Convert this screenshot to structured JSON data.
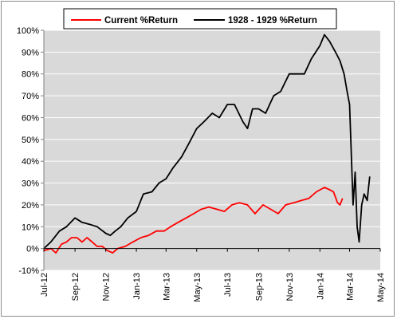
{
  "chart_data": {
    "type": "line",
    "title": "",
    "xlabel": "",
    "ylabel": "",
    "ylim": [
      -10,
      100
    ],
    "xlim": [
      "2012-07-01",
      "2014-05-01"
    ],
    "grid": "horizontal",
    "legend_position": "top",
    "colors": {
      "plot_background": "#d9d9d9",
      "gridline": "#ffffff",
      "zero_line": "#000000"
    },
    "y_ticks": [
      -10,
      0,
      10,
      20,
      30,
      40,
      50,
      60,
      70,
      80,
      90,
      100
    ],
    "y_tick_labels": [
      "-10%",
      "0%",
      "10%",
      "20%",
      "30%",
      "40%",
      "50%",
      "60%",
      "70%",
      "80%",
      "90%",
      "100%"
    ],
    "x_tick_labels": [
      "Jul-12",
      "Sep-12",
      "Nov-12",
      "Jan-13",
      "Mar-13",
      "May-13",
      "Jul-13",
      "Sep-13",
      "Nov-13",
      "Jan-14",
      "Mar-14",
      "May-14"
    ],
    "x_tick_dates": [
      "2012-07-01",
      "2012-09-01",
      "2012-11-01",
      "2013-01-01",
      "2013-03-01",
      "2013-05-01",
      "2013-07-01",
      "2013-09-01",
      "2013-11-01",
      "2014-01-01",
      "2014-03-01",
      "2014-05-01"
    ],
    "series": [
      {
        "name": "Current %Return",
        "color": "#ff0000",
        "points": [
          [
            "2012-07-01",
            -1
          ],
          [
            "2012-07-15",
            0
          ],
          [
            "2012-07-25",
            -2
          ],
          [
            "2012-08-05",
            2
          ],
          [
            "2012-08-15",
            3
          ],
          [
            "2012-08-25",
            5
          ],
          [
            "2012-09-05",
            5
          ],
          [
            "2012-09-15",
            3
          ],
          [
            "2012-09-25",
            5
          ],
          [
            "2012-10-05",
            3
          ],
          [
            "2012-10-15",
            1
          ],
          [
            "2012-10-25",
            1
          ],
          [
            "2012-11-05",
            -1
          ],
          [
            "2012-11-15",
            -2
          ],
          [
            "2012-11-25",
            0
          ],
          [
            "2012-12-10",
            1
          ],
          [
            "2012-12-25",
            3
          ],
          [
            "2013-01-10",
            5
          ],
          [
            "2013-01-25",
            6
          ],
          [
            "2013-02-10",
            8
          ],
          [
            "2013-02-25",
            8
          ],
          [
            "2013-03-10",
            10
          ],
          [
            "2013-03-25",
            12
          ],
          [
            "2013-04-10",
            14
          ],
          [
            "2013-04-25",
            16
          ],
          [
            "2013-05-10",
            18
          ],
          [
            "2013-05-25",
            19
          ],
          [
            "2013-06-10",
            18
          ],
          [
            "2013-06-25",
            17
          ],
          [
            "2013-07-10",
            20
          ],
          [
            "2013-07-25",
            21
          ],
          [
            "2013-08-10",
            20
          ],
          [
            "2013-08-25",
            16
          ],
          [
            "2013-09-10",
            20
          ],
          [
            "2013-09-25",
            18
          ],
          [
            "2013-10-10",
            16
          ],
          [
            "2013-10-25",
            20
          ],
          [
            "2013-11-10",
            21
          ],
          [
            "2013-11-25",
            22
          ],
          [
            "2013-12-10",
            23
          ],
          [
            "2013-12-25",
            26
          ],
          [
            "2014-01-10",
            28
          ],
          [
            "2014-01-20",
            27
          ],
          [
            "2014-01-28",
            26
          ],
          [
            "2014-02-05",
            21
          ],
          [
            "2014-02-10",
            20
          ],
          [
            "2014-02-15",
            23
          ]
        ]
      },
      {
        "name": "1928 - 1929 %Return",
        "color": "#000000",
        "points": [
          [
            "2012-07-01",
            0
          ],
          [
            "2012-07-15",
            3
          ],
          [
            "2012-08-01",
            8
          ],
          [
            "2012-08-15",
            10
          ],
          [
            "2012-09-01",
            14
          ],
          [
            "2012-09-15",
            12
          ],
          [
            "2012-10-01",
            11
          ],
          [
            "2012-10-15",
            10
          ],
          [
            "2012-11-01",
            7
          ],
          [
            "2012-11-10",
            6
          ],
          [
            "2012-11-20",
            8
          ],
          [
            "2012-12-01",
            10
          ],
          [
            "2012-12-15",
            14
          ],
          [
            "2013-01-01",
            17
          ],
          [
            "2013-01-15",
            25
          ],
          [
            "2013-02-01",
            26
          ],
          [
            "2013-02-15",
            30
          ],
          [
            "2013-03-01",
            32
          ],
          [
            "2013-03-15",
            37
          ],
          [
            "2013-04-01",
            42
          ],
          [
            "2013-04-15",
            48
          ],
          [
            "2013-05-01",
            55
          ],
          [
            "2013-05-15",
            58
          ],
          [
            "2013-06-01",
            62
          ],
          [
            "2013-06-15",
            60
          ],
          [
            "2013-07-01",
            66
          ],
          [
            "2013-07-15",
            66
          ],
          [
            "2013-08-01",
            58
          ],
          [
            "2013-08-10",
            55
          ],
          [
            "2013-08-20",
            64
          ],
          [
            "2013-09-01",
            64
          ],
          [
            "2013-09-15",
            62
          ],
          [
            "2013-10-01",
            70
          ],
          [
            "2013-10-15",
            72
          ],
          [
            "2013-11-01",
            80
          ],
          [
            "2013-11-15",
            80
          ],
          [
            "2013-12-01",
            80
          ],
          [
            "2013-12-15",
            87
          ],
          [
            "2014-01-01",
            93
          ],
          [
            "2014-01-10",
            98
          ],
          [
            "2014-01-20",
            95
          ],
          [
            "2014-02-01",
            90
          ],
          [
            "2014-02-10",
            86
          ],
          [
            "2014-02-18",
            80
          ],
          [
            "2014-02-24",
            72
          ],
          [
            "2014-03-01",
            66
          ],
          [
            "2014-03-05",
            40
          ],
          [
            "2014-03-08",
            20
          ],
          [
            "2014-03-12",
            35
          ],
          [
            "2014-03-16",
            10
          ],
          [
            "2014-03-20",
            3
          ],
          [
            "2014-03-25",
            20
          ],
          [
            "2014-03-30",
            25
          ],
          [
            "2014-04-05",
            22
          ],
          [
            "2014-04-10",
            33
          ]
        ]
      }
    ]
  }
}
